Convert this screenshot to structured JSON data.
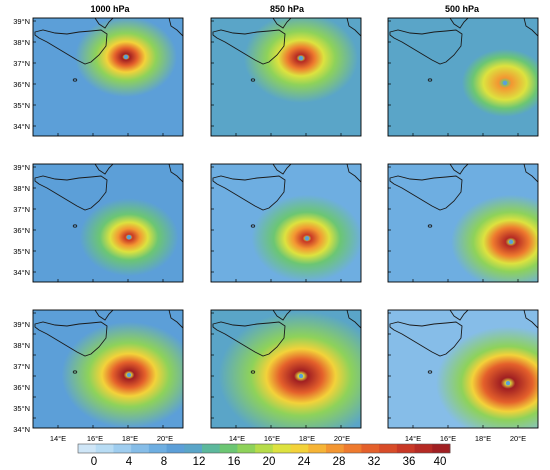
{
  "figure": {
    "column_titles": [
      "1000 hPa",
      "850 hPa",
      "500 hPa"
    ],
    "lat_ticks": [
      "39°N",
      "38°N",
      "37°N",
      "36°N",
      "35°N",
      "34°N"
    ],
    "lon_ticks": [
      "14°E",
      "16°E",
      "18°E",
      "20°E"
    ],
    "colorbar": {
      "labels": [
        "0",
        "4",
        "8",
        "12",
        "16",
        "20",
        "24",
        "28",
        "32",
        "36",
        "40"
      ],
      "colors": [
        "#cfe6f7",
        "#b8dcf4",
        "#9fcdef",
        "#86bde8",
        "#6eaee1",
        "#5c9fd8",
        "#5aa5c8",
        "#5cb89c",
        "#6cc673",
        "#8ed25a",
        "#b6dc4a",
        "#dde23f",
        "#f3d23a",
        "#f6b436",
        "#f39632",
        "#ee7a2e",
        "#e4602b",
        "#d84c28",
        "#c83826",
        "#b52a24",
        "#a01f22"
      ]
    },
    "panels": [
      {
        "row": 0,
        "col": 0,
        "peak": 1.0,
        "tc": [
          0.62,
          0.33
        ],
        "r": 0.34,
        "ring": 0.08,
        "bg": 0.45
      },
      {
        "row": 0,
        "col": 1,
        "peak": 0.95,
        "tc": [
          0.6,
          0.34
        ],
        "r": 0.38,
        "ring": 0.1,
        "bg": 0.52
      },
      {
        "row": 0,
        "col": 2,
        "peak": 0.7,
        "tc": [
          0.78,
          0.55
        ],
        "r": 0.45,
        "ring": 0.18,
        "bg": 0.55
      },
      {
        "row": 1,
        "col": 0,
        "peak": 0.9,
        "tc": [
          0.64,
          0.62
        ],
        "r": 0.33,
        "ring": 0.08,
        "bg": 0.42
      },
      {
        "row": 1,
        "col": 1,
        "peak": 0.88,
        "tc": [
          0.64,
          0.63
        ],
        "r": 0.37,
        "ring": 0.1,
        "bg": 0.4
      },
      {
        "row": 1,
        "col": 2,
        "peak": 0.95,
        "tc": [
          0.82,
          0.66
        ],
        "r": 0.4,
        "ring": 0.16,
        "bg": 0.35
      },
      {
        "row": 2,
        "col": 0,
        "peak": 1.0,
        "tc": [
          0.64,
          0.55
        ],
        "r": 0.45,
        "ring": 0.1,
        "bg": 0.45
      },
      {
        "row": 2,
        "col": 1,
        "peak": 1.0,
        "tc": [
          0.6,
          0.56
        ],
        "r": 0.55,
        "ring": 0.12,
        "bg": 0.5
      },
      {
        "row": 2,
        "col": 2,
        "peak": 1.0,
        "tc": [
          0.8,
          0.62
        ],
        "r": 0.48,
        "ring": 0.2,
        "bg": 0.3
      }
    ]
  }
}
